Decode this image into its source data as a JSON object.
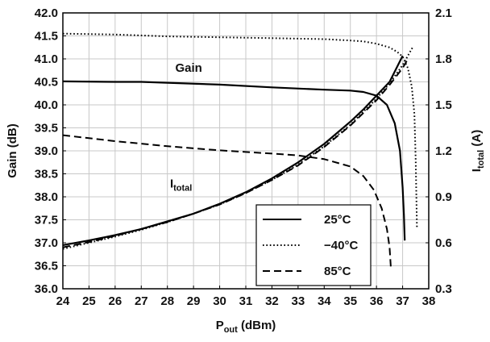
{
  "chart_data": {
    "type": "line",
    "title": "",
    "xlabel": {
      "main": "P",
      "sub": "out",
      "rest": " (dBm)"
    },
    "ylabel_left": "Gain (dB)",
    "ylabel_right": {
      "main": "I",
      "sub": "total",
      "rest": " (A)"
    },
    "xlim": [
      24,
      38
    ],
    "ylim_left": [
      36.0,
      42.0
    ],
    "ylim_right": [
      0.3,
      2.1
    ],
    "x_ticks": [
      "24",
      "25",
      "26",
      "27",
      "28",
      "29",
      "30",
      "31",
      "32",
      "33",
      "34",
      "35",
      "36",
      "37",
      "38"
    ],
    "y_ticks_left": [
      "36.0",
      "36.5",
      "37.0",
      "37.5",
      "38.0",
      "38.5",
      "39.0",
      "39.5",
      "40.0",
      "40.5",
      "41.0",
      "41.5",
      "42.0"
    ],
    "y_ticks_right": [
      "0.3",
      "0.6",
      "0.9",
      "1.2",
      "1.5",
      "1.8",
      "2.1"
    ],
    "grid": true,
    "legend_position": "bottom-right",
    "legend": [
      {
        "label": "25°C",
        "style": "solid"
      },
      {
        "label": "−40°C",
        "style": "dotted"
      },
      {
        "label": "85°C",
        "style": "dashed"
      }
    ],
    "annotations": [
      {
        "text": "Gain",
        "x": 28.3,
        "y": 40.72,
        "axis": "left"
      },
      {
        "text_main": "I",
        "text_sub": "total",
        "x": 28.1,
        "y": 38.2,
        "axis": "left"
      }
    ],
    "series": [
      {
        "group": "Gain",
        "temp": "25°C",
        "style": "solid",
        "axis": "left",
        "x": [
          24,
          26,
          27,
          28,
          30,
          32,
          34,
          35,
          35.5,
          36,
          36.4,
          36.7,
          36.9,
          37.0,
          37.05,
          37.08
        ],
        "y": [
          40.51,
          40.5,
          40.5,
          40.48,
          40.44,
          40.38,
          40.33,
          40.31,
          40.28,
          40.2,
          40.0,
          39.6,
          39.0,
          38.2,
          37.6,
          37.05
        ]
      },
      {
        "group": "Gain",
        "temp": "−40°C",
        "style": "dotted",
        "axis": "left",
        "x": [
          24,
          26,
          28,
          30,
          32,
          33,
          34,
          35,
          35.5,
          36,
          36.5,
          36.8,
          37.0,
          37.2,
          37.35,
          37.45,
          37.5,
          37.55
        ],
        "y": [
          41.55,
          41.53,
          41.49,
          41.47,
          41.45,
          41.44,
          41.43,
          41.4,
          41.38,
          41.33,
          41.25,
          41.15,
          41.05,
          40.8,
          40.4,
          39.8,
          38.8,
          37.3
        ]
      },
      {
        "group": "Gain",
        "temp": "85°C",
        "style": "dashed",
        "axis": "left",
        "x": [
          24,
          26,
          28,
          30,
          32,
          33,
          34,
          35,
          35.5,
          35.9,
          36.2,
          36.4,
          36.5,
          36.55
        ],
        "y": [
          39.34,
          39.21,
          39.1,
          39.01,
          38.94,
          38.9,
          38.82,
          38.66,
          38.45,
          38.15,
          37.75,
          37.3,
          36.9,
          36.45
        ]
      },
      {
        "group": "Itotal",
        "temp": "25°C",
        "style": "solid",
        "axis": "right",
        "x": [
          24,
          25,
          26,
          27,
          28,
          29,
          30,
          31,
          32,
          33,
          34,
          35,
          35.5,
          36,
          36.5,
          37.0
        ],
        "y": [
          0.585,
          0.615,
          0.65,
          0.69,
          0.74,
          0.79,
          0.855,
          0.93,
          1.02,
          1.125,
          1.245,
          1.39,
          1.47,
          1.56,
          1.65,
          1.82
        ]
      },
      {
        "group": "Itotal",
        "temp": "−40°C",
        "style": "dotted",
        "axis": "right",
        "x": [
          24,
          25,
          26,
          27,
          28,
          29,
          30,
          31,
          32,
          33,
          34,
          35,
          36,
          36.5,
          37.0,
          37.4
        ],
        "y": [
          0.56,
          0.6,
          0.64,
          0.685,
          0.735,
          0.79,
          0.85,
          0.925,
          1.01,
          1.11,
          1.23,
          1.37,
          1.54,
          1.64,
          1.76,
          1.88
        ]
      },
      {
        "group": "Itotal",
        "temp": "85°C",
        "style": "dashed",
        "axis": "right",
        "x": [
          24,
          25,
          26,
          27,
          28,
          29,
          30,
          31,
          32,
          33,
          34,
          35,
          36,
          36.5,
          37.0,
          37.2
        ],
        "y": [
          0.57,
          0.605,
          0.645,
          0.69,
          0.735,
          0.79,
          0.85,
          0.925,
          1.01,
          1.105,
          1.225,
          1.365,
          1.53,
          1.63,
          1.74,
          1.8
        ]
      }
    ]
  }
}
